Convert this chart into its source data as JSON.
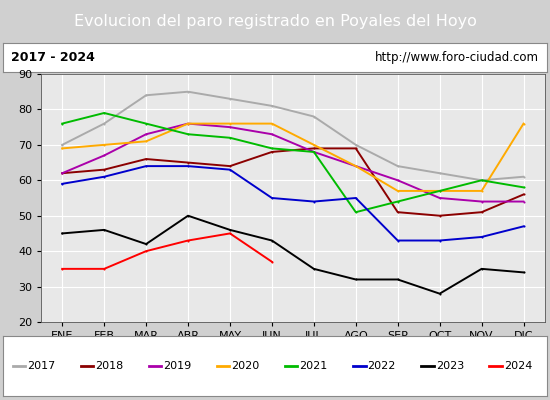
{
  "title": "Evolucion del paro registrado en Poyales del Hoyo",
  "subtitle_left": "2017 - 2024",
  "subtitle_right": "http://www.foro-ciudad.com",
  "ylim": [
    20,
    90
  ],
  "months": [
    "ENE",
    "FEB",
    "MAR",
    "ABR",
    "MAY",
    "JUN",
    "JUL",
    "AGO",
    "SEP",
    "OCT",
    "NOV",
    "DIC"
  ],
  "series": {
    "2017": {
      "color": "#aaaaaa",
      "values": [
        70,
        76,
        84,
        85,
        83,
        81,
        78,
        70,
        64,
        62,
        60,
        61
      ]
    },
    "2018": {
      "color": "#8b0000",
      "values": [
        62,
        63,
        66,
        65,
        64,
        68,
        69,
        69,
        51,
        50,
        51,
        56
      ]
    },
    "2019": {
      "color": "#aa00aa",
      "values": [
        62,
        67,
        73,
        76,
        75,
        73,
        68,
        64,
        60,
        55,
        54,
        54
      ]
    },
    "2020": {
      "color": "#ffaa00",
      "values": [
        69,
        70,
        71,
        76,
        76,
        76,
        70,
        64,
        57,
        57,
        57,
        76
      ]
    },
    "2021": {
      "color": "#00bb00",
      "values": [
        76,
        79,
        76,
        73,
        72,
        69,
        68,
        51,
        54,
        57,
        60,
        58
      ]
    },
    "2022": {
      "color": "#0000cc",
      "values": [
        59,
        61,
        64,
        64,
        63,
        55,
        54,
        55,
        43,
        43,
        44,
        47
      ]
    },
    "2023": {
      "color": "#000000",
      "values": [
        45,
        46,
        42,
        50,
        46,
        43,
        35,
        32,
        32,
        28,
        35,
        34
      ]
    },
    "2024": {
      "color": "#ff0000",
      "values": [
        35,
        35,
        40,
        43,
        45,
        37,
        null,
        null,
        null,
        null,
        null,
        null
      ]
    }
  },
  "series_order": [
    "2017",
    "2018",
    "2019",
    "2020",
    "2021",
    "2022",
    "2023",
    "2024"
  ],
  "background_title": "#5b8fd4",
  "background_subtitle": "#ffffff",
  "background_plot": "#e8e8e8",
  "title_color": "#ffffff",
  "title_fontsize": 11.5,
  "subtitle_fontsize": 9,
  "tick_fontsize": 8,
  "legend_fontsize": 8,
  "grid_color": "#ffffff",
  "marker": ".",
  "marker_size": 3,
  "linewidth": 1.4
}
